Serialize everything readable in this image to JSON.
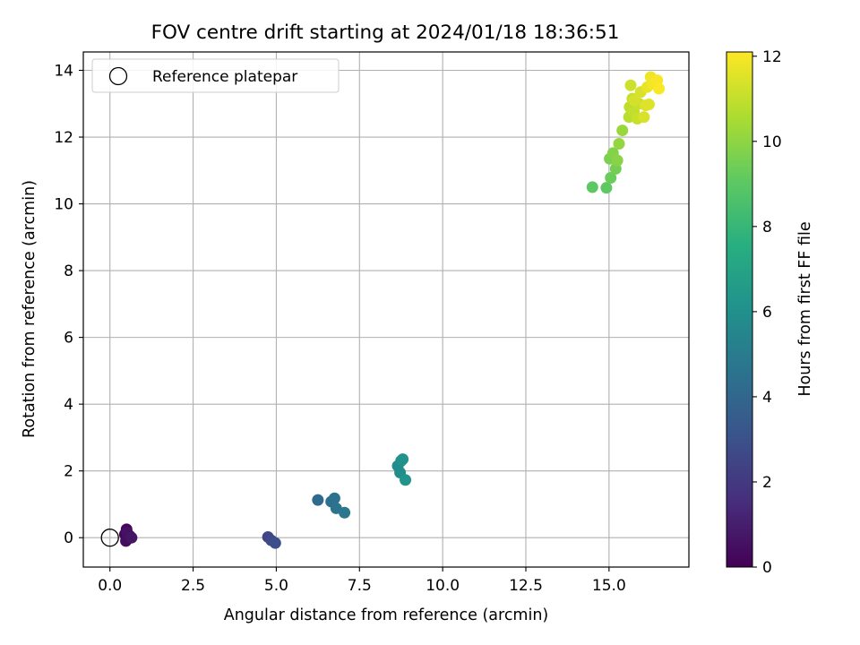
{
  "chart_data": {
    "type": "scatter",
    "title": "FOV centre drift starting at 2024/01/18 18:36:51",
    "xlabel": "Angular distance from reference (arcmin)",
    "ylabel": "Rotation from reference (arcmin)",
    "colorbar_label": "Hours from first FF file",
    "colormap": "viridis",
    "xlim": [
      -0.8,
      17.4
    ],
    "ylim": [
      -0.88,
      14.55
    ],
    "x_ticks": [
      0,
      2.5,
      5,
      7.5,
      10,
      12.5,
      15
    ],
    "x_tick_labels": [
      "0.0",
      "2.5",
      "5.0",
      "7.5",
      "10.0",
      "12.5",
      "15.0"
    ],
    "y_ticks": [
      0,
      2,
      4,
      6,
      8,
      10,
      12,
      14
    ],
    "y_tick_labels": [
      "0",
      "2",
      "4",
      "6",
      "8",
      "10",
      "12",
      "14"
    ],
    "colorbar_ticks": [
      0,
      2,
      4,
      6,
      8,
      10,
      12
    ],
    "colorbar_tick_labels": [
      "0",
      "2",
      "4",
      "6",
      "8",
      "10",
      "12"
    ],
    "colorbar_range": [
      0,
      12.1
    ],
    "grid": true,
    "legend_position": "top-left",
    "legend": [
      {
        "label": "Reference platepar",
        "marker": "open-circle"
      }
    ],
    "reference_point": {
      "x": 0,
      "y": 0
    },
    "points": [
      {
        "x": 0.45,
        "y": 0.1,
        "c": 0.1
      },
      {
        "x": 0.5,
        "y": 0.25,
        "c": 0.2
      },
      {
        "x": 0.55,
        "y": 0.0,
        "c": 0.3
      },
      {
        "x": 0.48,
        "y": -0.1,
        "c": 0.4
      },
      {
        "x": 0.6,
        "y": 0.05,
        "c": 0.5
      },
      {
        "x": 0.52,
        "y": 0.15,
        "c": 0.6
      },
      {
        "x": 0.65,
        "y": 0.0,
        "c": 0.7
      },
      {
        "x": 4.75,
        "y": 0.02,
        "c": 2.5
      },
      {
        "x": 4.85,
        "y": -0.08,
        "c": 2.7
      },
      {
        "x": 4.97,
        "y": -0.16,
        "c": 2.9
      },
      {
        "x": 6.25,
        "y": 1.13,
        "c": 4.2
      },
      {
        "x": 6.65,
        "y": 1.08,
        "c": 4.4
      },
      {
        "x": 6.75,
        "y": 1.18,
        "c": 4.5
      },
      {
        "x": 6.8,
        "y": 0.88,
        "c": 4.6
      },
      {
        "x": 7.05,
        "y": 0.75,
        "c": 4.8
      },
      {
        "x": 8.65,
        "y": 2.15,
        "c": 5.8
      },
      {
        "x": 8.72,
        "y": 1.95,
        "c": 5.9
      },
      {
        "x": 8.75,
        "y": 2.3,
        "c": 6.0
      },
      {
        "x": 8.8,
        "y": 2.35,
        "c": 6.1
      },
      {
        "x": 8.88,
        "y": 1.73,
        "c": 6.2
      },
      {
        "x": 14.5,
        "y": 10.5,
        "c": 9.0
      },
      {
        "x": 14.92,
        "y": 10.48,
        "c": 9.1
      },
      {
        "x": 15.05,
        "y": 10.78,
        "c": 9.3
      },
      {
        "x": 15.02,
        "y": 11.35,
        "c": 9.6
      },
      {
        "x": 15.2,
        "y": 11.05,
        "c": 9.5
      },
      {
        "x": 15.12,
        "y": 11.52,
        "c": 9.8
      },
      {
        "x": 15.25,
        "y": 11.3,
        "c": 9.9
      },
      {
        "x": 15.3,
        "y": 11.8,
        "c": 10.1
      },
      {
        "x": 15.4,
        "y": 12.2,
        "c": 10.2
      },
      {
        "x": 15.6,
        "y": 12.6,
        "c": 10.8
      },
      {
        "x": 15.62,
        "y": 12.9,
        "c": 10.9
      },
      {
        "x": 15.7,
        "y": 13.15,
        "c": 11.0
      },
      {
        "x": 15.75,
        "y": 12.75,
        "c": 11.0
      },
      {
        "x": 15.85,
        "y": 12.55,
        "c": 11.1
      },
      {
        "x": 15.9,
        "y": 13.0,
        "c": 11.1
      },
      {
        "x": 15.65,
        "y": 13.55,
        "c": 11.2
      },
      {
        "x": 15.75,
        "y": 13.1,
        "c": 11.3
      },
      {
        "x": 15.95,
        "y": 13.35,
        "c": 11.4
      },
      {
        "x": 16.05,
        "y": 12.6,
        "c": 11.4
      },
      {
        "x": 16.1,
        "y": 12.95,
        "c": 11.5
      },
      {
        "x": 16.2,
        "y": 12.98,
        "c": 11.5
      },
      {
        "x": 16.15,
        "y": 13.5,
        "c": 11.7
      },
      {
        "x": 16.25,
        "y": 13.8,
        "c": 11.8
      },
      {
        "x": 16.3,
        "y": 13.6,
        "c": 11.9
      },
      {
        "x": 16.45,
        "y": 13.7,
        "c": 12.0
      },
      {
        "x": 16.5,
        "y": 13.45,
        "c": 12.05
      }
    ]
  }
}
